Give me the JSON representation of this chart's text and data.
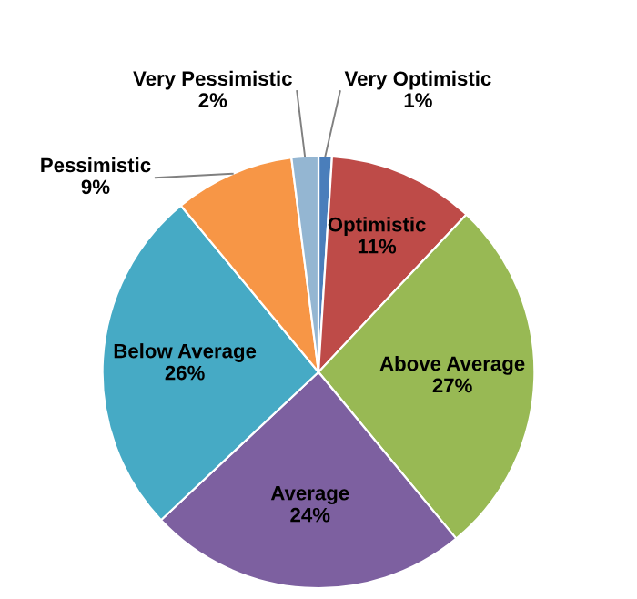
{
  "chart_data": {
    "type": "pie",
    "categories": [
      "Very Optimistic",
      "Optimistic",
      "Above Average",
      "Average",
      "Below Average",
      "Pessimistic",
      "Very Pessimistic"
    ],
    "values": [
      1,
      11,
      27,
      24,
      26,
      9,
      2
    ],
    "colors": [
      "#4a7ebb",
      "#be4b48",
      "#98b954",
      "#7d60a0",
      "#46aac5",
      "#f79646",
      "#94b6d2"
    ],
    "value_labels": [
      "1%",
      "11%",
      "27%",
      "24%",
      "26%",
      "9%",
      "2%"
    ],
    "legend": false
  }
}
